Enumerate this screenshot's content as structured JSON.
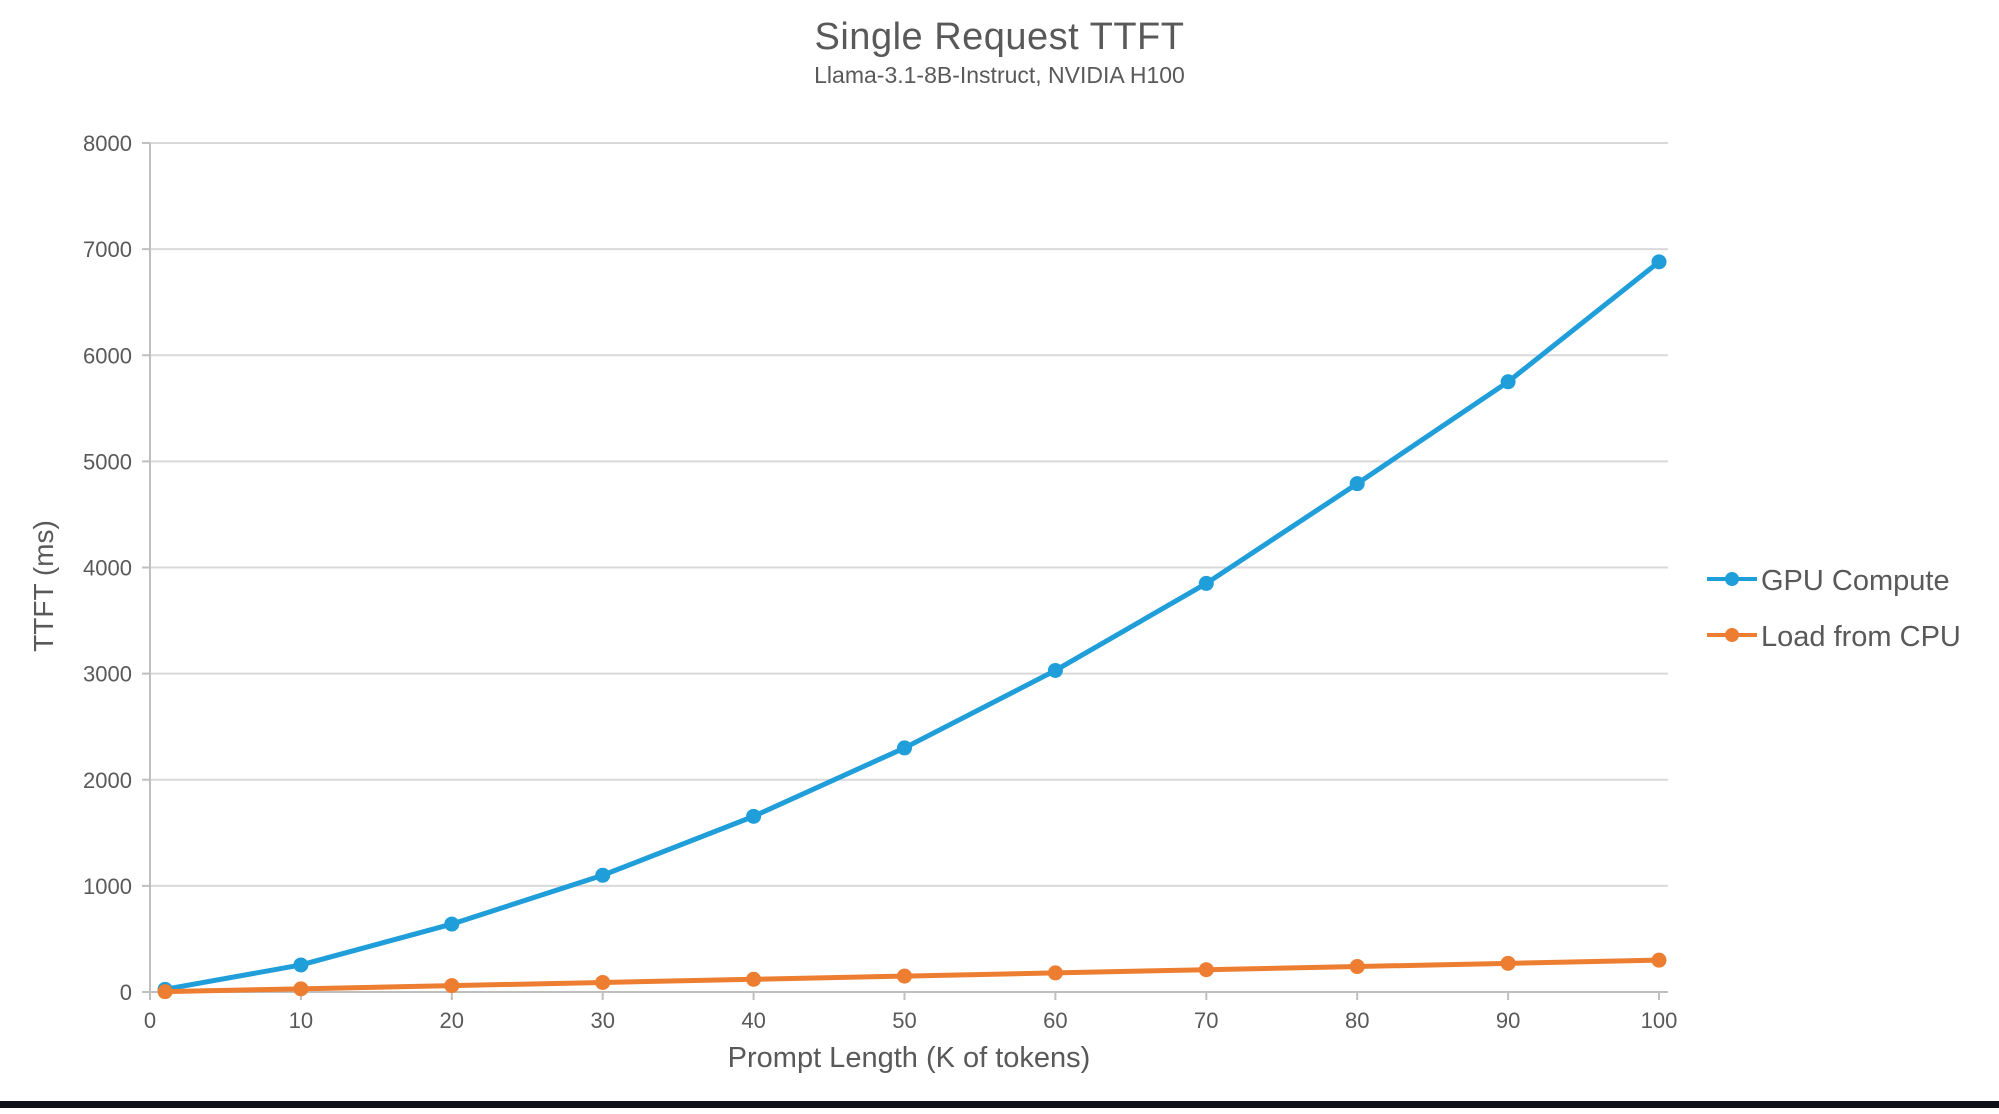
{
  "header": {
    "title": "Single Request TTFT",
    "subtitle": "Llama-3.1-8B-Instruct, NVIDIA H100"
  },
  "chart_data": {
    "type": "line",
    "title": "Single Request TTFT",
    "subtitle": "Llama-3.1-8B-Instruct, NVIDIA H100",
    "xlabel": "Prompt Length (K of tokens)",
    "ylabel": "TTFT (ms)",
    "x": [
      1,
      10,
      20,
      30,
      40,
      50,
      60,
      70,
      80,
      90,
      100
    ],
    "series": [
      {
        "name": "GPU Compute",
        "color": "#1F9ED9",
        "values": [
          25,
          255,
          640,
          1100,
          1655,
          2300,
          3030,
          3850,
          4790,
          5750,
          6880
        ]
      },
      {
        "name": "Load from CPU",
        "color": "#ED7D31",
        "values": [
          3,
          30,
          60,
          90,
          120,
          150,
          180,
          210,
          240,
          270,
          300
        ]
      }
    ],
    "xlim": [
      0,
      100
    ],
    "ylim": [
      0,
      8000
    ],
    "x_ticks": [
      0,
      10,
      20,
      30,
      40,
      50,
      60,
      70,
      80,
      90,
      100
    ],
    "y_ticks": [
      0,
      1000,
      2000,
      3000,
      4000,
      5000,
      6000,
      7000,
      8000
    ],
    "grid": "horizontal-only",
    "legend_position": "right-middle"
  },
  "colors": {
    "text": "#595959",
    "gridline": "#D9D9D9",
    "axis_line": "#BFBFBF",
    "series_gpu": "#1F9ED9",
    "series_cpu": "#ED7D31",
    "bottom_bar": "#0D1117",
    "background": "#FFFFFF"
  }
}
